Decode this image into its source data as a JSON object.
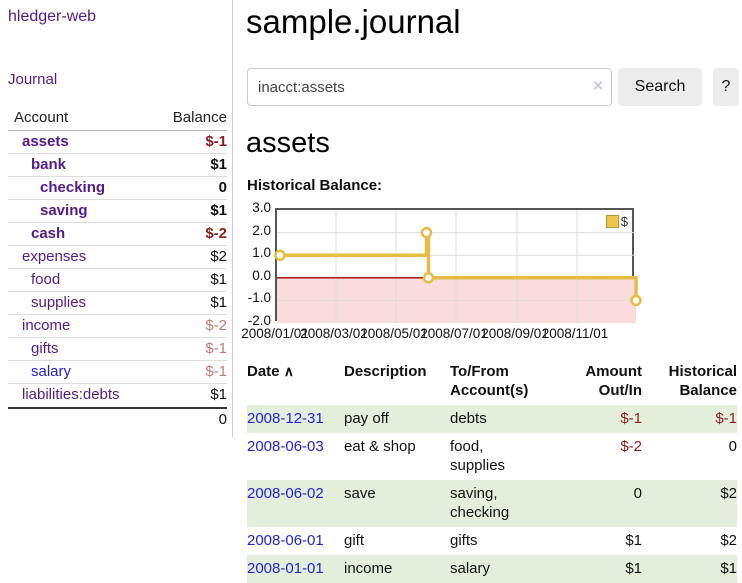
{
  "sidebar": {
    "app_title": "hledger-web",
    "journal_label": "Journal",
    "accounts_table": {
      "headers": {
        "account": "Account",
        "balance": "Balance"
      },
      "rows": [
        {
          "name": "assets",
          "balance": "$-1",
          "level": 1,
          "bold": true,
          "name_color": "purple",
          "balance_style": "neg"
        },
        {
          "name": "bank",
          "balance": "$1",
          "level": 2,
          "bold": true,
          "name_color": "purple",
          "balance_style": ""
        },
        {
          "name": "checking",
          "balance": "0",
          "level": 3,
          "bold": true,
          "name_color": "purple",
          "balance_style": ""
        },
        {
          "name": "saving",
          "balance": "$1",
          "level": 3,
          "bold": true,
          "name_color": "purple",
          "balance_style": ""
        },
        {
          "name": "cash",
          "balance": "$-2",
          "level": 2,
          "bold": true,
          "name_color": "purple",
          "balance_style": "neg"
        },
        {
          "name": "expenses",
          "balance": "$2",
          "level": 1,
          "bold": false,
          "name_color": "purple",
          "balance_style": ""
        },
        {
          "name": "food",
          "balance": "$1",
          "level": 2,
          "bold": false,
          "name_color": "purple",
          "balance_style": ""
        },
        {
          "name": "supplies",
          "balance": "$1",
          "level": 2,
          "bold": false,
          "name_color": "purple",
          "balance_style": ""
        },
        {
          "name": "income",
          "balance": "$-2",
          "level": 1,
          "bold": false,
          "name_color": "purple",
          "balance_style": "neg-muted"
        },
        {
          "name": "gifts",
          "balance": "$-1",
          "level": 2,
          "bold": false,
          "name_color": "purple",
          "balance_style": "neg-muted"
        },
        {
          "name": "salary",
          "balance": "$-1",
          "level": 2,
          "bold": false,
          "name_color": "blue",
          "balance_style": "neg-muted"
        },
        {
          "name": "liabilities:debts",
          "balance": "$1",
          "level": 1,
          "bold": false,
          "name_color": "purple",
          "balance_style": ""
        }
      ],
      "total": "0"
    }
  },
  "header": {
    "title": "sample.journal"
  },
  "search": {
    "query": "inacct:assets",
    "clear_icon": "×",
    "search_label": "Search",
    "help_label": "?"
  },
  "account_page": {
    "heading": "assets"
  },
  "chart_data": {
    "type": "line",
    "title": "Historical Balance:",
    "step": true,
    "series": [
      {
        "name": "$",
        "points": [
          {
            "date": "2008-01-01",
            "day": 0,
            "value": 1
          },
          {
            "date": "2008-06-01",
            "day": 152,
            "value": 2
          },
          {
            "date": "2008-06-03",
            "day": 154,
            "value": 0
          },
          {
            "date": "2008-12-31",
            "day": 365,
            "value": -1
          }
        ]
      }
    ],
    "ylim": [
      -2,
      3
    ],
    "yticks": [
      3.0,
      2.0,
      1.0,
      0.0,
      -1.0,
      -2.0
    ],
    "xlim_days": [
      0,
      365
    ],
    "xticks": [
      {
        "day": 0,
        "label": "2008/01/01"
      },
      {
        "day": 60,
        "label": "2008/03/01"
      },
      {
        "day": 121,
        "label": "2008/05/01"
      },
      {
        "day": 182,
        "label": "2008/07/01"
      },
      {
        "day": 244,
        "label": "2008/09/01"
      },
      {
        "day": 305,
        "label": "2008/11/01"
      }
    ],
    "legend": {
      "label": "$",
      "position": "top-right"
    },
    "grid": true,
    "colors": {
      "line": "#e6bc45",
      "marker_fill": "#ffffff",
      "negative_region": "#fbdcdc",
      "zero_line": "#a00000",
      "grid": "#dcdcdc",
      "border": "#555555"
    }
  },
  "register_table": {
    "headers": {
      "date": "Date",
      "sort_icon": "∧",
      "description": "Description",
      "accounts": [
        "To/From",
        "Account(s)"
      ],
      "amount": [
        "Amount",
        "Out/In"
      ],
      "balance": [
        "Historical",
        "Balance"
      ]
    },
    "rows": [
      {
        "date": "2008-12-31",
        "description": "pay off",
        "accounts": "debts",
        "amount": "$-1",
        "amount_negative": true,
        "balance": "$-1",
        "balance_negative": true,
        "shaded": true
      },
      {
        "date": "2008-06-03",
        "description": "eat & shop",
        "accounts": "food, supplies",
        "amount": "$-2",
        "amount_negative": true,
        "balance": "0",
        "balance_negative": false,
        "shaded": false
      },
      {
        "date": "2008-06-02",
        "description": "save",
        "accounts": "saving, checking",
        "amount": "0",
        "amount_negative": false,
        "balance": "$2",
        "balance_negative": false,
        "shaded": true
      },
      {
        "date": "2008-06-01",
        "description": "gift",
        "accounts": "gifts",
        "amount": "$1",
        "amount_negative": false,
        "balance": "$2",
        "balance_negative": false,
        "shaded": false
      },
      {
        "date": "2008-01-01",
        "description": "income",
        "accounts": "salary",
        "amount": "$1",
        "amount_negative": false,
        "balance": "$1",
        "balance_negative": false,
        "shaded": true
      }
    ]
  }
}
